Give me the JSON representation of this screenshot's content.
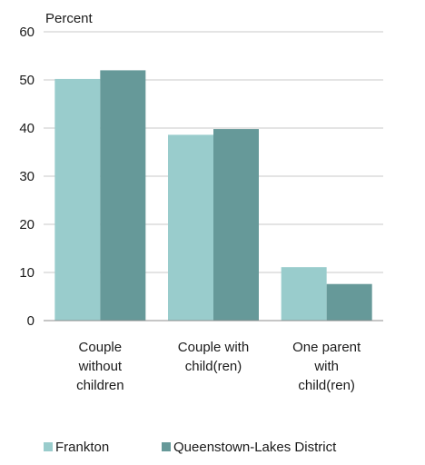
{
  "chart_data": {
    "type": "bar",
    "ylabel": "Percent",
    "ylim": [
      0,
      60
    ],
    "yticks": [
      0,
      10,
      20,
      30,
      40,
      50,
      60
    ],
    "grid": true,
    "legend_position": "bottom",
    "categories": [
      [
        "Couple",
        "without",
        "children"
      ],
      [
        "Couple with",
        "child(ren)"
      ],
      [
        "One parent",
        "with",
        "child(ren)"
      ]
    ],
    "series": [
      {
        "name": "Frankton",
        "color": "#99cccc",
        "values": [
          50.2,
          38.6,
          11.1
        ]
      },
      {
        "name": "Queenstown-Lakes District",
        "color": "#669999",
        "values": [
          52.0,
          39.8,
          7.6
        ]
      }
    ]
  }
}
